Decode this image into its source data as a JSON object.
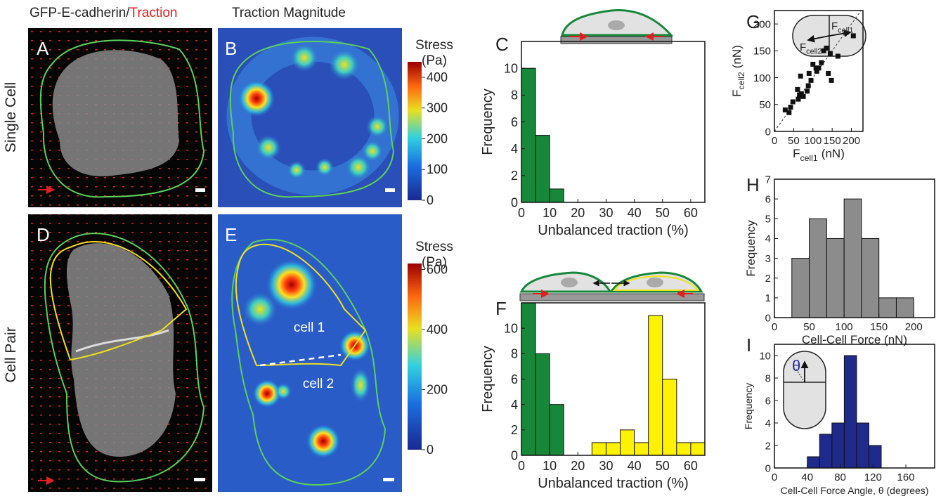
{
  "figure": {
    "title_a": "GFP-E-cadherin/",
    "title_a_red": "Traction",
    "title_b": "Traction Magnitude",
    "row_labels": [
      "Single Cell",
      "Cell Pair"
    ],
    "panel_letters": [
      "A",
      "B",
      "C",
      "D",
      "E",
      "F",
      "G",
      "H",
      "I"
    ],
    "cell_labels": [
      "cell 1",
      "cell 2"
    ],
    "colorbars": [
      {
        "title": "Stress",
        "unit": "(Pa)",
        "lim": [
          0,
          450
        ],
        "ticks": [
          0,
          100,
          200,
          300,
          400
        ]
      },
      {
        "title": "Stress",
        "unit": "(Pa)",
        "lim": [
          0,
          620
        ],
        "ticks": [
          0,
          200,
          400,
          600
        ]
      }
    ],
    "g_inset": [
      {
        "symbol": "F",
        "subscript": "cell1"
      },
      {
        "symbol": "F",
        "subscript": "cell2"
      }
    ],
    "i_inset": "θ"
  },
  "chart_data": [
    {
      "type": "histogram",
      "x_label": "Unbalanced traction (%)",
      "y_label": "Frequency",
      "xlim": [
        0,
        65
      ],
      "xticks": [
        0,
        10,
        20,
        30,
        40,
        50,
        60
      ],
      "ylim": [
        0,
        12
      ],
      "yticks": [
        0,
        2,
        4,
        6,
        8,
        10
      ],
      "series": [
        {
          "color": "#17873a",
          "bins": [
            0,
            5,
            10,
            15
          ],
          "values": [
            10,
            5,
            1
          ]
        }
      ]
    },
    {
      "type": "histogram",
      "x_label": "Unbalanced traction (%)",
      "y_label": "Frequency",
      "xlim": [
        0,
        65
      ],
      "xticks": [
        0,
        10,
        20,
        30,
        40,
        50,
        60
      ],
      "ylim": [
        0,
        12
      ],
      "yticks": [
        0,
        2,
        4,
        6,
        8,
        10
      ],
      "series": [
        {
          "color": "#17873a",
          "bins": [
            0,
            5,
            10,
            15
          ],
          "values": [
            12,
            8,
            4
          ]
        },
        {
          "color": "#fff200",
          "bins": [
            25,
            30,
            35,
            40,
            45,
            50,
            55,
            60,
            65
          ],
          "values": [
            1,
            1,
            2,
            1,
            11,
            6,
            1,
            1
          ]
        }
      ]
    },
    {
      "type": "scatter",
      "x_label": {
        "symbol": "F",
        "subscript": "cell1",
        "unit": "(nN)"
      },
      "y_label": {
        "symbol": "F",
        "subscript": "cell2",
        "unit": "(nN)"
      },
      "xlim": [
        0,
        230
      ],
      "xticks": [
        0,
        50,
        100,
        150,
        200
      ],
      "ylim": [
        0,
        225
      ],
      "yticks": [
        0,
        50,
        100,
        150,
        200
      ],
      "diagonal": true,
      "color": "#111111",
      "x": [
        28,
        38,
        42,
        48,
        60,
        62,
        65,
        68,
        70,
        75,
        85,
        88,
        90,
        95,
        100,
        108,
        110,
        115,
        122,
        128,
        135,
        140,
        145,
        148,
        165,
        205
      ],
      "y": [
        40,
        35,
        45,
        55,
        78,
        60,
        68,
        103,
        70,
        65,
        75,
        85,
        108,
        95,
        125,
        118,
        112,
        118,
        128,
        150,
        155,
        108,
        145,
        95,
        140,
        178
      ]
    },
    {
      "type": "histogram",
      "x_label": "Cell-Cell Force (nN)",
      "y_label": "Frequency",
      "xlim": [
        0,
        230
      ],
      "xticks": [
        0,
        50,
        100,
        150,
        200
      ],
      "ylim": [
        0,
        7
      ],
      "yticks": [
        0,
        1,
        2,
        3,
        4,
        5,
        6,
        7
      ],
      "series": [
        {
          "color": "#8c8c8c",
          "bins": [
            25,
            50,
            75,
            100,
            125,
            150,
            175,
            200
          ],
          "values": [
            3,
            5,
            4,
            6,
            4,
            1,
            1
          ]
        }
      ]
    },
    {
      "type": "histogram",
      "x_label": "Cell-Cell Force Angle, θ (degrees)",
      "y_label": "Frequency",
      "xlim": [
        0,
        195
      ],
      "xticks": [
        0,
        40,
        80,
        120,
        160
      ],
      "ylim": [
        0,
        11
      ],
      "yticks": [
        0,
        2,
        4,
        6,
        8,
        10
      ],
      "series": [
        {
          "color": "#1f2a8a",
          "bins": [
            40,
            55,
            70,
            85,
            100,
            115,
            130
          ],
          "values": [
            1,
            3,
            4,
            10,
            4,
            2
          ]
        }
      ]
    }
  ]
}
